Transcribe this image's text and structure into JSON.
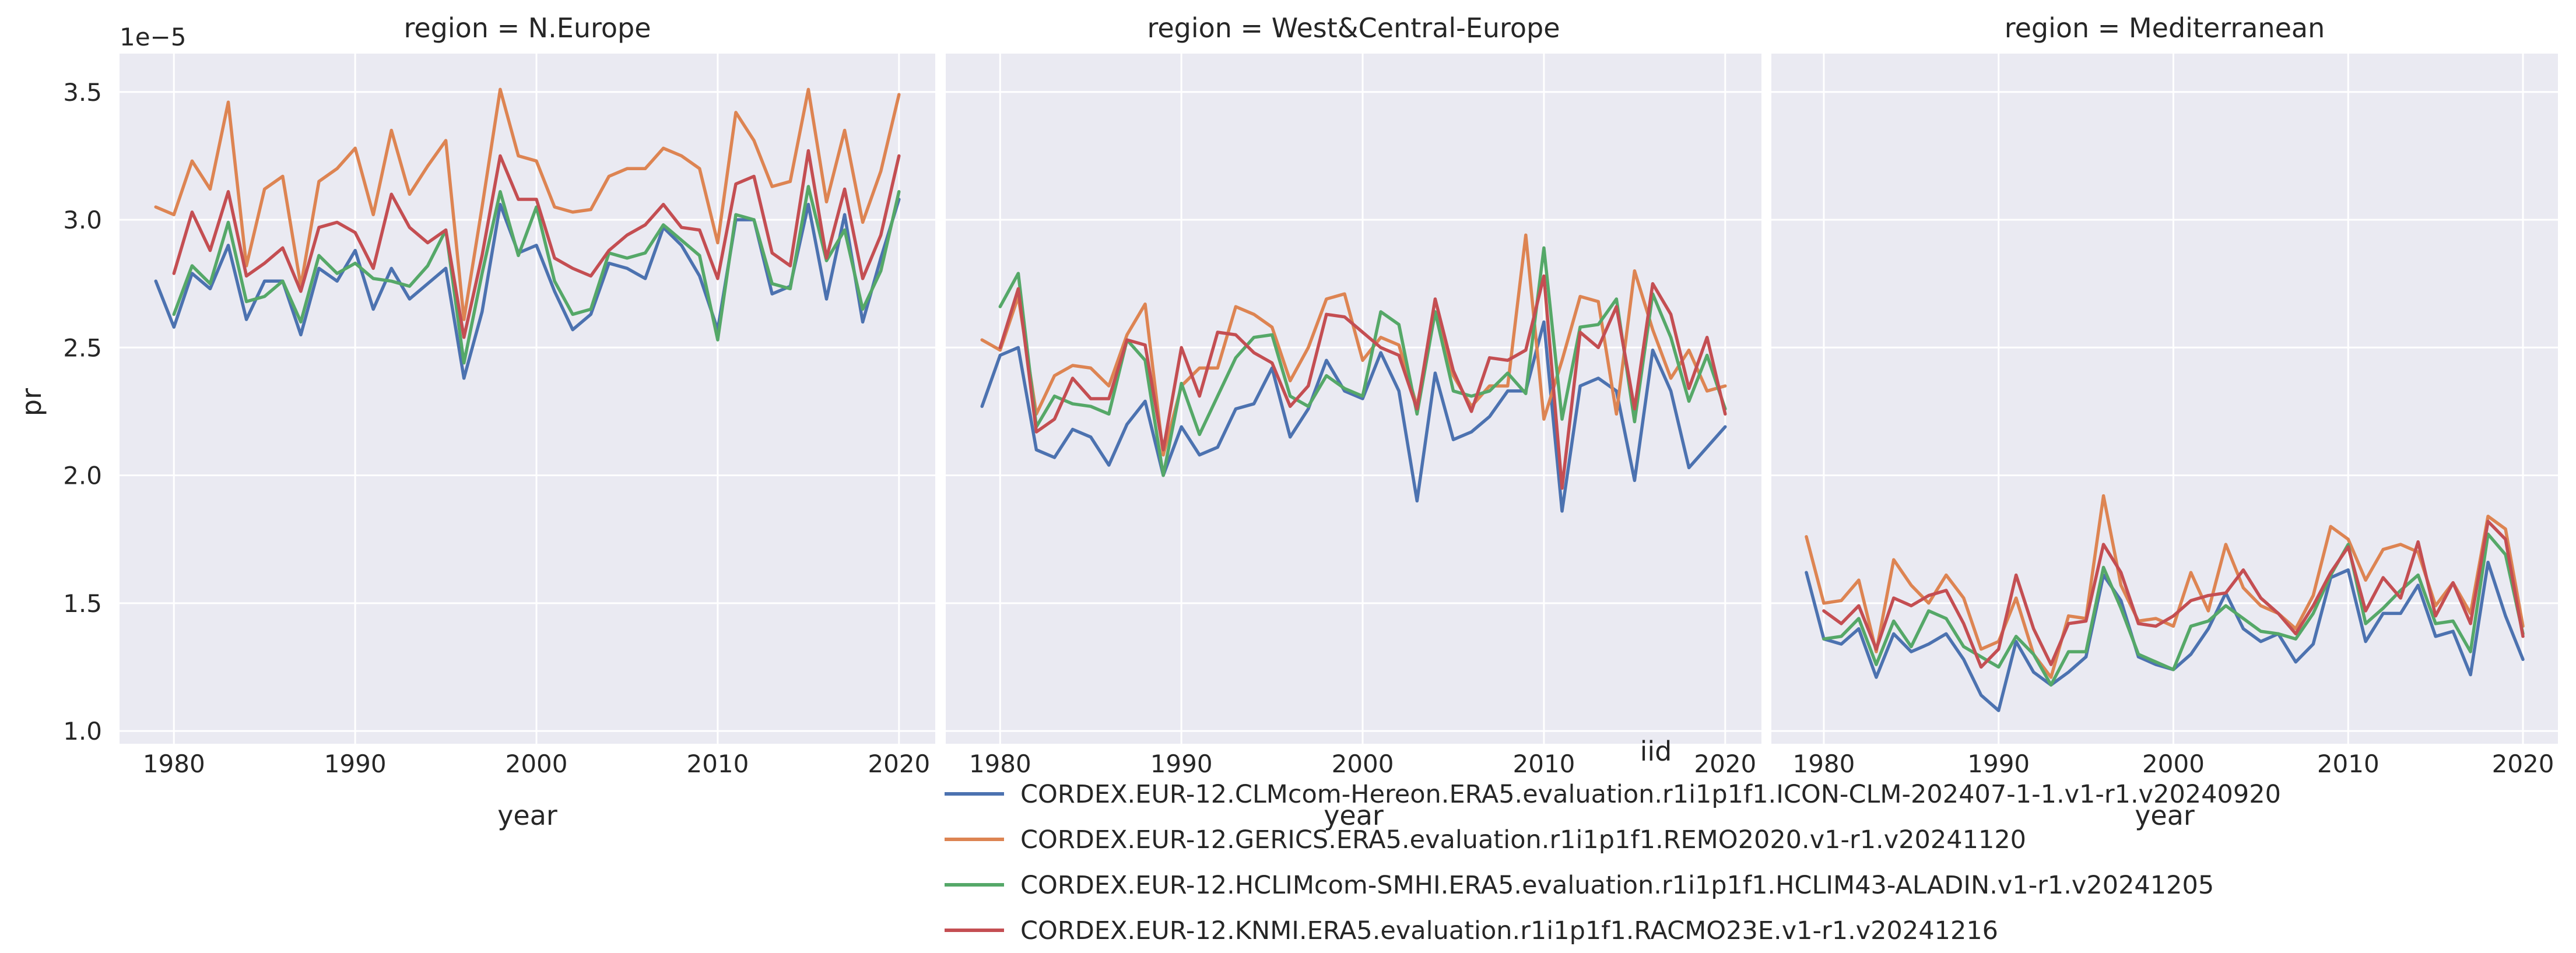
{
  "chart_data": {
    "type": "line",
    "xlabel": "year",
    "ylabel": "pr",
    "y_offset_text": "1e−5",
    "ylim": [
      0.95,
      3.65
    ],
    "xlim": [
      1977,
      2022
    ],
    "x_ticks": [
      1980,
      1990,
      2000,
      2010,
      2020
    ],
    "x_tick_labels": [
      "1980",
      "1990",
      "2000",
      "2010",
      "2020"
    ],
    "y_ticks": [
      1.0,
      1.5,
      2.0,
      2.5,
      3.0,
      3.5
    ],
    "y_tick_labels": [
      "1.0",
      "1.5",
      "2.0",
      "2.5",
      "3.0",
      "3.5"
    ],
    "grid": true,
    "background": "#eaeaf2",
    "legend": {
      "title": "iid",
      "placement": "bottom-center",
      "entries": [
        {
          "label": "CORDEX.EUR-12.CLMcom-Hereon.ERA5.evaluation.r1i1p1f1.ICON-CLM-202407-1-1.v1-r1.v20240920",
          "color": "#4c72b0"
        },
        {
          "label": "CORDEX.EUR-12.GERICS.ERA5.evaluation.r1i1p1f1.REMO2020.v1-r1.v20241120",
          "color": "#dd8452"
        },
        {
          "label": "CORDEX.EUR-12.HCLIMcom-SMHI.ERA5.evaluation.r1i1p1f1.HCLIM43-ALADIN.v1-r1.v20241205",
          "color": "#55a868"
        },
        {
          "label": "CORDEX.EUR-12.KNMI.ERA5.evaluation.r1i1p1f1.RACMO23E.v1-r1.v20241216",
          "color": "#c44e52"
        }
      ]
    },
    "panels": [
      {
        "title": "region = N.Europe",
        "series": [
          {
            "start": 1979,
            "color": "#4c72b0",
            "values": [
              2.76,
              2.58,
              2.79,
              2.73,
              2.9,
              2.61,
              2.76,
              2.76,
              2.55,
              2.81,
              2.76,
              2.88,
              2.65,
              2.81,
              2.69,
              2.75,
              2.81,
              2.38,
              2.64,
              3.06,
              2.87,
              2.9,
              2.72,
              2.57,
              2.63,
              2.83,
              2.81,
              2.77,
              2.97,
              2.9,
              2.78,
              2.57,
              3.0,
              3.0,
              2.71,
              2.74,
              3.06,
              2.69,
              3.02,
              2.6,
              2.85,
              3.08
            ]
          },
          {
            "start": 1979,
            "color": "#dd8452",
            "values": [
              3.05,
              3.02,
              3.23,
              3.12,
              3.46,
              2.82,
              3.12,
              3.17,
              2.74,
              3.15,
              3.2,
              3.28,
              3.02,
              3.35,
              3.1,
              3.21,
              3.31,
              2.61,
              3.05,
              3.51,
              3.25,
              3.23,
              3.05,
              3.03,
              3.04,
              3.17,
              3.2,
              3.2,
              3.28,
              3.25,
              3.2,
              2.91,
              3.42,
              3.31,
              3.13,
              3.15,
              3.51,
              3.07,
              3.35,
              2.99,
              3.19,
              3.49
            ]
          },
          {
            "start": 1979,
            "color": "#55a868",
            "values": [
              null,
              2.63,
              2.82,
              2.75,
              2.99,
              2.68,
              2.7,
              2.76,
              2.6,
              2.86,
              2.79,
              2.83,
              2.77,
              2.76,
              2.74,
              2.82,
              2.96,
              2.44,
              2.79,
              3.11,
              2.86,
              3.05,
              2.76,
              2.63,
              2.65,
              2.87,
              2.85,
              2.87,
              2.98,
              2.92,
              2.86,
              2.53,
              3.02,
              3.0,
              2.75,
              2.73,
              3.13,
              2.84,
              2.96,
              2.65,
              2.8,
              3.11
            ]
          },
          {
            "start": 1979,
            "color": "#c44e52",
            "values": [
              null,
              2.79,
              3.03,
              2.88,
              3.11,
              2.78,
              2.83,
              2.89,
              2.72,
              2.97,
              2.99,
              2.95,
              2.81,
              3.1,
              2.97,
              2.91,
              2.96,
              2.54,
              2.86,
              3.25,
              3.08,
              3.08,
              2.85,
              2.81,
              2.78,
              2.88,
              2.94,
              2.98,
              3.06,
              2.97,
              2.96,
              2.77,
              3.14,
              3.17,
              2.87,
              2.82,
              3.27,
              2.85,
              3.12,
              2.77,
              2.94,
              3.25
            ]
          }
        ]
      },
      {
        "title": "region = West&Central-Europe",
        "series": [
          {
            "start": 1979,
            "color": "#4c72b0",
            "values": [
              2.27,
              2.47,
              2.5,
              2.1,
              2.07,
              2.18,
              2.15,
              2.04,
              2.2,
              2.29,
              2.0,
              2.19,
              2.08,
              2.11,
              2.26,
              2.28,
              2.42,
              2.15,
              2.26,
              2.45,
              2.33,
              2.3,
              2.48,
              2.33,
              1.9,
              2.4,
              2.14,
              2.17,
              2.23,
              2.33,
              2.33,
              2.6,
              1.86,
              2.35,
              2.38,
              2.33,
              1.98,
              2.49,
              2.33,
              2.03,
              2.11,
              2.19
            ]
          },
          {
            "start": 1979,
            "color": "#dd8452",
            "values": [
              2.53,
              2.49,
              2.7,
              2.24,
              2.39,
              2.43,
              2.42,
              2.35,
              2.55,
              2.67,
              2.08,
              2.35,
              2.42,
              2.42,
              2.66,
              2.63,
              2.58,
              2.37,
              2.5,
              2.69,
              2.71,
              2.45,
              2.54,
              2.51,
              2.27,
              2.64,
              2.39,
              2.27,
              2.35,
              2.35,
              2.94,
              2.22,
              2.45,
              2.7,
              2.68,
              2.24,
              2.8,
              2.57,
              2.38,
              2.49,
              2.33,
              2.35
            ]
          },
          {
            "start": 1979,
            "color": "#55a868",
            "values": [
              null,
              2.66,
              2.79,
              2.19,
              2.31,
              2.28,
              2.27,
              2.24,
              2.53,
              2.45,
              2.0,
              2.36,
              2.16,
              2.31,
              2.46,
              2.54,
              2.55,
              2.31,
              2.27,
              2.39,
              2.34,
              2.31,
              2.64,
              2.59,
              2.24,
              2.64,
              2.33,
              2.31,
              2.33,
              2.4,
              2.32,
              2.89,
              2.22,
              2.58,
              2.59,
              2.69,
              2.21,
              2.71,
              2.54,
              2.29,
              2.47,
              2.26
            ]
          },
          {
            "start": 1979,
            "color": "#c44e52",
            "values": [
              null,
              2.5,
              2.73,
              2.17,
              2.22,
              2.38,
              2.3,
              2.3,
              2.53,
              2.51,
              2.1,
              2.5,
              2.31,
              2.56,
              2.55,
              2.48,
              2.44,
              2.27,
              2.35,
              2.63,
              2.62,
              2.56,
              2.5,
              2.47,
              2.26,
              2.69,
              2.41,
              2.25,
              2.46,
              2.45,
              2.49,
              2.78,
              1.95,
              2.56,
              2.5,
              2.66,
              2.26,
              2.75,
              2.63,
              2.34,
              2.54,
              2.24
            ]
          }
        ]
      },
      {
        "title": "region = Mediterranean",
        "series": [
          {
            "start": 1979,
            "color": "#4c72b0",
            "values": [
              1.62,
              1.36,
              1.34,
              1.4,
              1.21,
              1.38,
              1.31,
              1.34,
              1.38,
              1.28,
              1.14,
              1.08,
              1.35,
              1.23,
              1.18,
              1.23,
              1.29,
              1.61,
              1.51,
              1.29,
              1.26,
              1.24,
              1.3,
              1.4,
              1.54,
              1.4,
              1.35,
              1.38,
              1.27,
              1.34,
              1.6,
              1.63,
              1.35,
              1.46,
              1.46,
              1.57,
              1.37,
              1.39,
              1.22,
              1.66,
              1.45,
              1.28
            ]
          },
          {
            "start": 1979,
            "color": "#dd8452",
            "values": [
              1.76,
              1.5,
              1.51,
              1.59,
              1.31,
              1.67,
              1.57,
              1.5,
              1.61,
              1.52,
              1.32,
              1.35,
              1.52,
              1.3,
              1.21,
              1.45,
              1.44,
              1.92,
              1.57,
              1.43,
              1.44,
              1.41,
              1.62,
              1.47,
              1.73,
              1.56,
              1.49,
              1.46,
              1.4,
              1.53,
              1.8,
              1.75,
              1.59,
              1.71,
              1.73,
              1.7,
              1.49,
              1.58,
              1.46,
              1.84,
              1.79,
              1.41
            ]
          },
          {
            "start": 1979,
            "color": "#55a868",
            "values": [
              null,
              1.36,
              1.37,
              1.44,
              1.26,
              1.43,
              1.33,
              1.47,
              1.44,
              1.33,
              1.29,
              1.25,
              1.37,
              1.3,
              1.18,
              1.31,
              1.31,
              1.64,
              1.48,
              1.3,
              1.27,
              1.24,
              1.41,
              1.43,
              1.49,
              1.44,
              1.39,
              1.38,
              1.36,
              1.46,
              1.61,
              1.73,
              1.42,
              1.48,
              1.55,
              1.61,
              1.42,
              1.43,
              1.31,
              1.77,
              1.69,
              1.38
            ]
          },
          {
            "start": 1979,
            "color": "#c44e52",
            "values": [
              null,
              1.47,
              1.42,
              1.49,
              1.32,
              1.52,
              1.49,
              1.53,
              1.55,
              1.42,
              1.25,
              1.32,
              1.61,
              1.4,
              1.26,
              1.42,
              1.43,
              1.73,
              1.62,
              1.42,
              1.41,
              1.45,
              1.51,
              1.53,
              1.54,
              1.63,
              1.52,
              1.46,
              1.38,
              1.49,
              1.62,
              1.72,
              1.47,
              1.6,
              1.52,
              1.74,
              1.45,
              1.58,
              1.42,
              1.82,
              1.75,
              1.37
            ]
          }
        ]
      }
    ]
  }
}
